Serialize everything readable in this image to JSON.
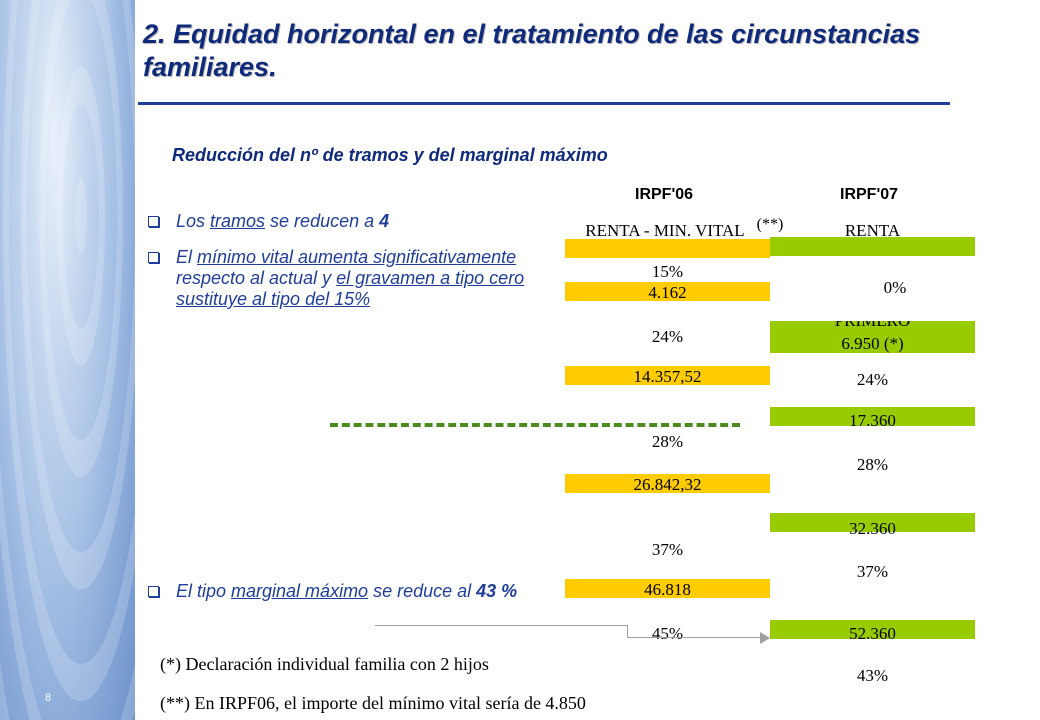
{
  "slide": {
    "page_number": "8",
    "title": "2. Equidad horizontal en el tratamiento de las circunstancias familiares.",
    "subtitle": "Reducción del nº de tramos y del marginal máximo"
  },
  "columns": {
    "irpf06": "IRPF'06",
    "irpf07": "IRPF'07"
  },
  "row_headers": {
    "irpf06": "RENTA - MIN. VITAL",
    "irpf07": "RENTA",
    "note_marker": "(**)"
  },
  "bullets": {
    "b1": {
      "pre": "Los ",
      "u1": "tramos",
      "mid": " se reducen a ",
      "bold": "4"
    },
    "b2": {
      "pre": "El ",
      "u1": "mínimo vital aumenta significativamente",
      "mid1": " respecto al actual y ",
      "u2": "el gravamen a tipo cero sustituye al tipo del 15%"
    },
    "b3": {
      "pre": "El tipo ",
      "u1": "marginal máximo",
      "mid": " se reduce al ",
      "bold": "43 %"
    }
  },
  "irpf06": {
    "rates": [
      "15%",
      "24%",
      "28%",
      "37%",
      "45%"
    ],
    "thresholds": [
      "4.162",
      "14.357,52",
      "26.842,32",
      "46.818"
    ]
  },
  "irpf07": {
    "rates": [
      "0%",
      "24%",
      "28%",
      "37%",
      "43%"
    ],
    "thresholds": [
      "6.950 (*)",
      "17.360",
      "32.360",
      "52.360"
    ],
    "partial_label": "PRIMERO"
  },
  "notes": {
    "n1": "(*) Declaración individual familia con 2 hijos",
    "n2": "(**) En IRPF06, el importe del mínimo vital sería de 4.850"
  },
  "colors": {
    "irpf06_bar": "#ffcc00",
    "irpf07_bar": "#99cc00",
    "title": "#0f2a7a",
    "dash": "#4d8a1e"
  }
}
